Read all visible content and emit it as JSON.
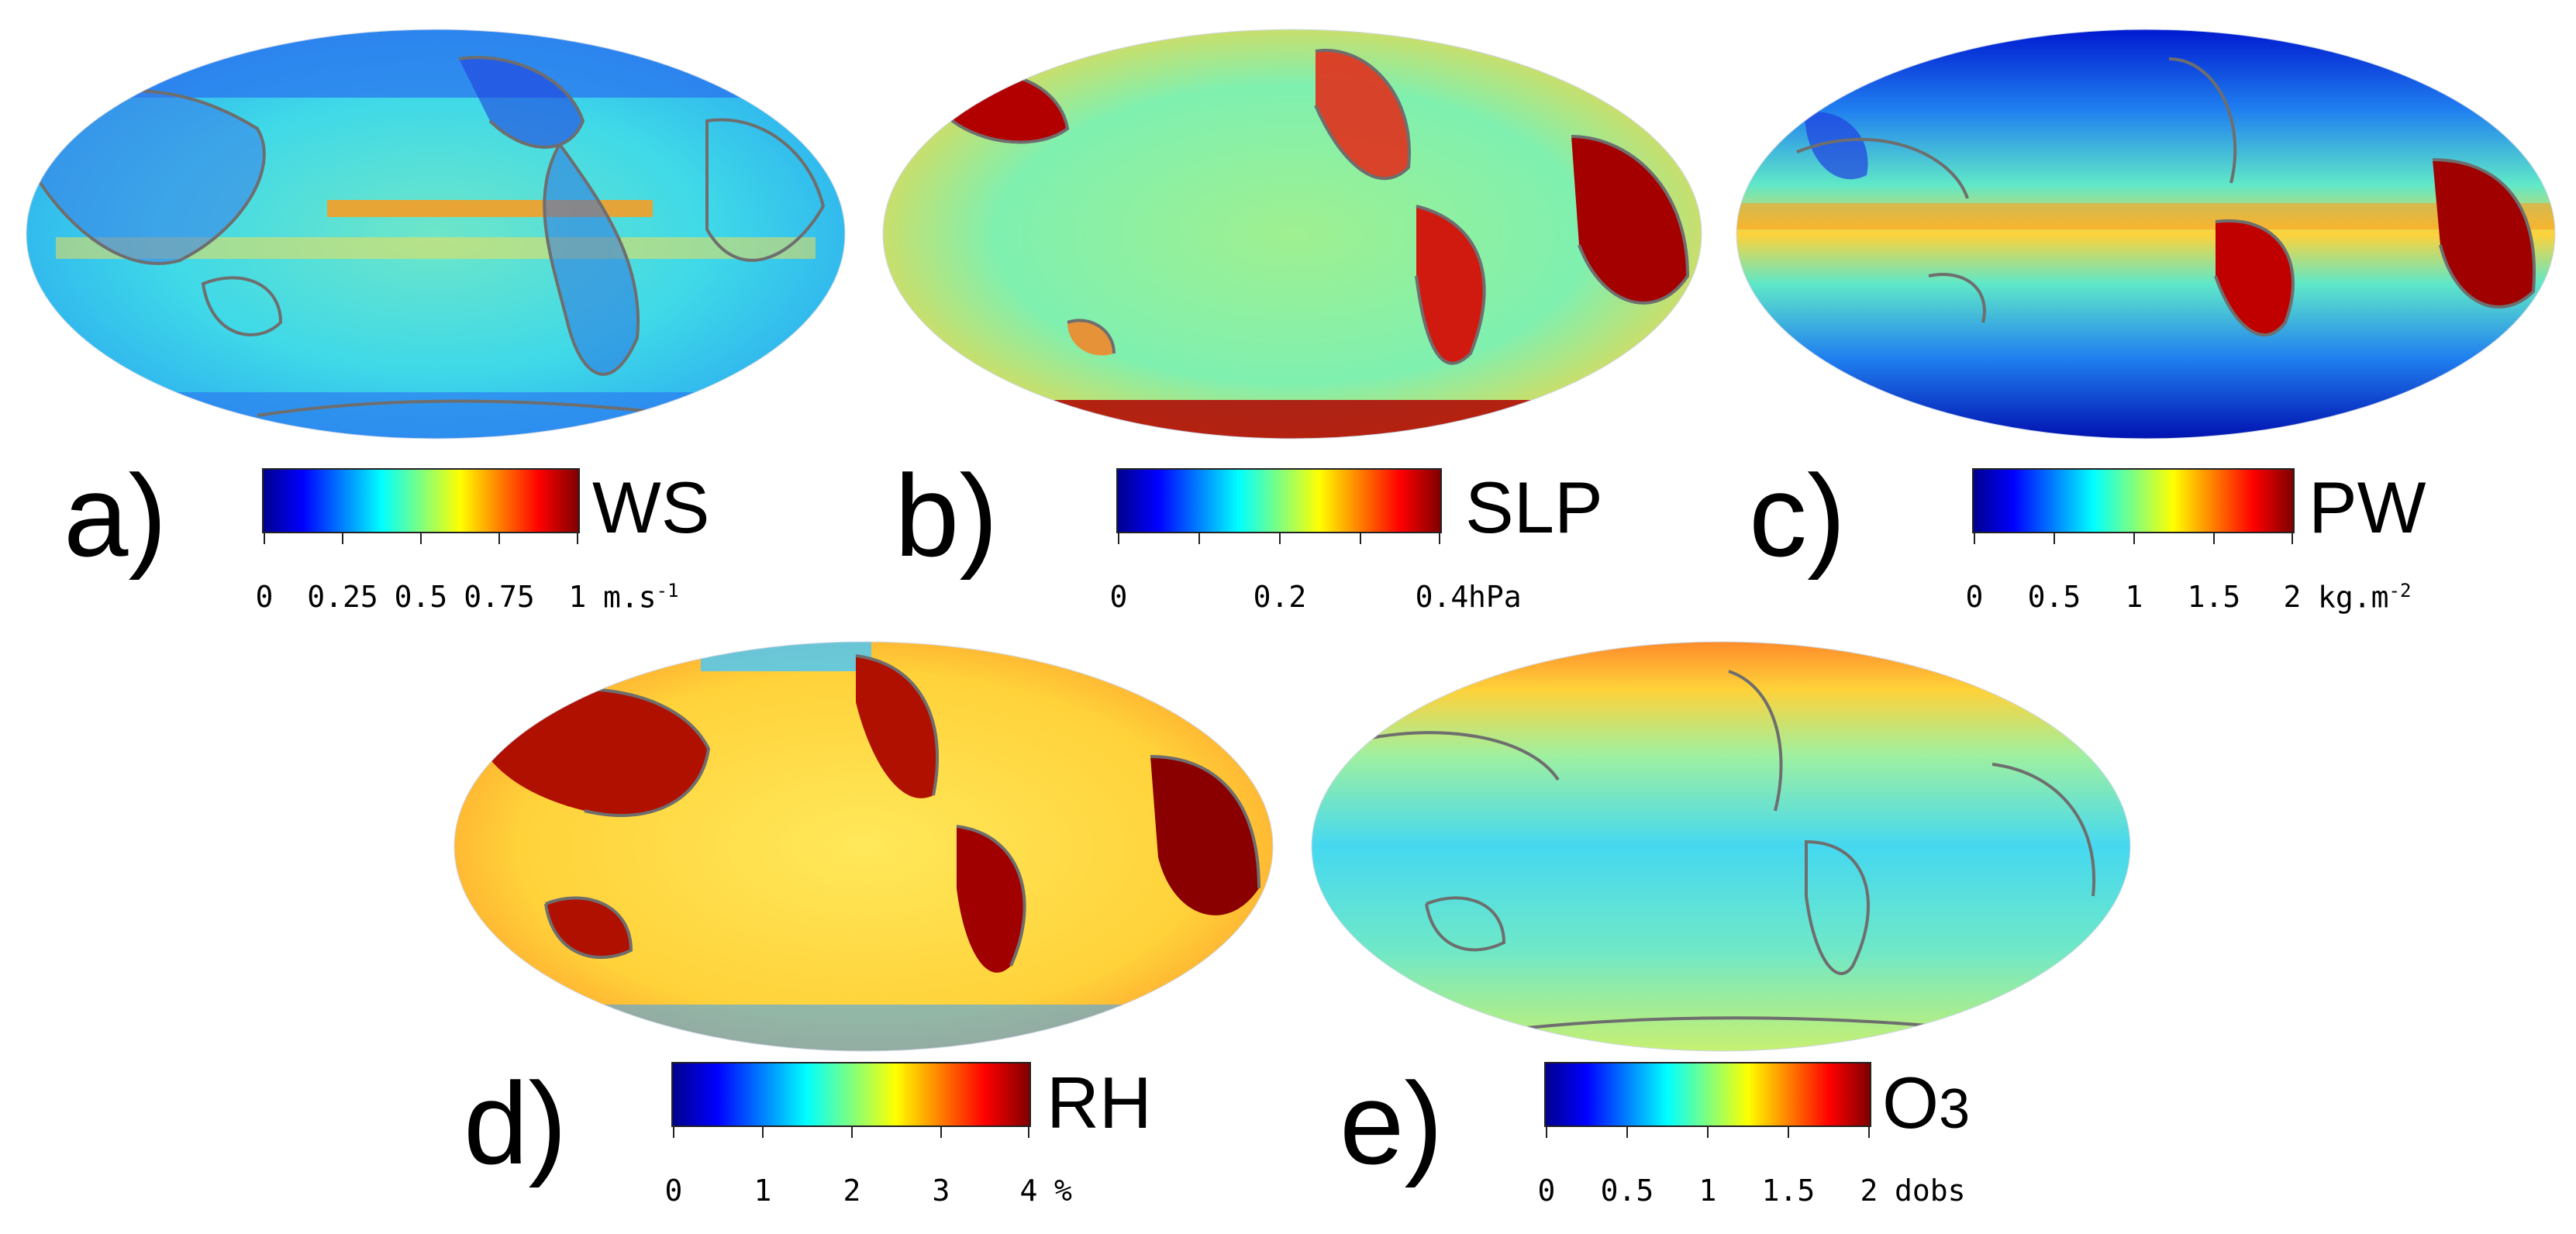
{
  "figure": {
    "panels": [
      {
        "id": "a",
        "label": "a)",
        "variable": "WS",
        "ticks": [
          "0",
          "0.25",
          "0.5",
          "0.75",
          "1"
        ],
        "unit": "m.s",
        "unit_sup": "-1",
        "palette_blend": {
          "ocean": "#3fd9e8",
          "land": "#3b6fe8",
          "band": "#ffd23a",
          "hot": "#ff8a1a"
        }
      },
      {
        "id": "b",
        "label": "b)",
        "variable": "SLP",
        "ticks": [
          "0",
          "0.2",
          "0.4"
        ],
        "unit": "hPa",
        "unit_sup": "",
        "palette_blend": {
          "ocean": "#7ff0b0",
          "land": "#e0301c",
          "band": "#ffe43a",
          "hot": "#a40000"
        }
      },
      {
        "id": "c",
        "label": "c)",
        "variable": "PW",
        "ticks": [
          "0",
          "0.5",
          "1",
          "1.5",
          "2"
        ],
        "unit": "kg.m",
        "unit_sup": "-2",
        "palette_blend": {
          "ocean": "#28c8f0",
          "land": "#b00000",
          "band": "#ffc02a",
          "hot": "#0010c0"
        }
      },
      {
        "id": "d",
        "label": "d)",
        "variable": "RH",
        "ticks": [
          "0",
          "1",
          "2",
          "3",
          "4"
        ],
        "unit": "%",
        "unit_sup": "",
        "palette_blend": {
          "ocean": "#ffe85a",
          "land": "#b01000",
          "band": "#ff9a2a",
          "hot": "#45c8ff"
        }
      },
      {
        "id": "e",
        "label": "e)",
        "variable": "O",
        "variable_sub": "3",
        "ticks": [
          "0",
          "0.5",
          "1",
          "1.5",
          "2"
        ],
        "unit": "dobs",
        "unit_sup": "",
        "palette_blend": {
          "ocean": "#5fdcf0",
          "land": "#7ff0c0",
          "band": "#d4f070",
          "hot": "#ff9a30"
        }
      }
    ],
    "colormap": "jet",
    "coastline_color": "#6e6e6e"
  }
}
